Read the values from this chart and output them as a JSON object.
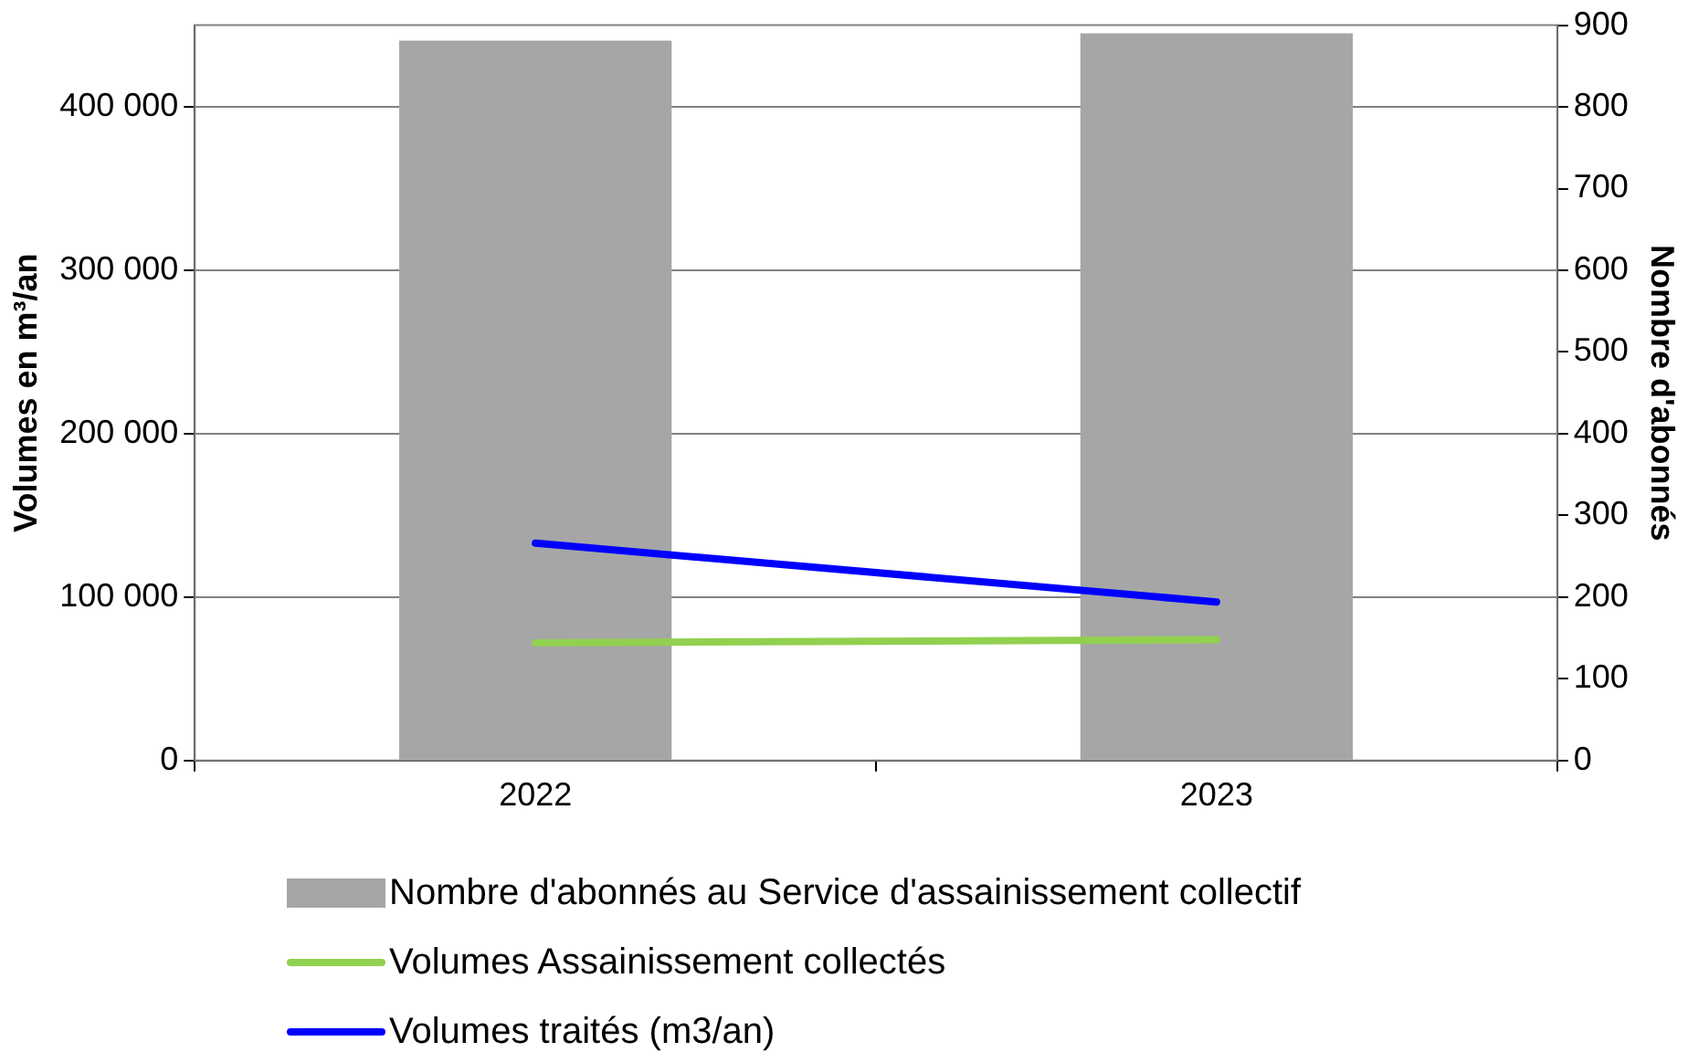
{
  "chart_data": {
    "type": "bar",
    "categories": [
      "2022",
      "2023"
    ],
    "series": [
      {
        "name": "Nombre d'abonnés au Service d'assainissement collectif",
        "axis": "y2",
        "color": "#a6a6a6",
        "values": [
          881,
          890
        ]
      },
      {
        "name": "Volumes Assainissement collectés",
        "type": "line",
        "color": "#92d050",
        "values": [
          72000,
          74000
        ]
      },
      {
        "name": "Volumes traités (m3/an)",
        "type": "line",
        "color": "#0000ff",
        "values": [
          133000,
          97000
        ]
      }
    ],
    "ylabel": "Volumes en m³/an",
    "y2label": "Nombre d'abonnés",
    "ylim": [
      0,
      450000
    ],
    "yticks": [
      0,
      {
        "value": 100000,
        "label": "100 000"
      },
      {
        "value": 200000,
        "label": "200 000"
      },
      {
        "value": 300000,
        "label": "300 000"
      },
      {
        "value": 400000,
        "label": "400 000"
      }
    ],
    "y2lim": [
      0,
      900
    ],
    "y2ticks": [
      0,
      100,
      200,
      300,
      400,
      500,
      600,
      700,
      800,
      900
    ],
    "grid": "y",
    "legend": "bottom",
    "marker": "none",
    "line_style": "solid"
  }
}
